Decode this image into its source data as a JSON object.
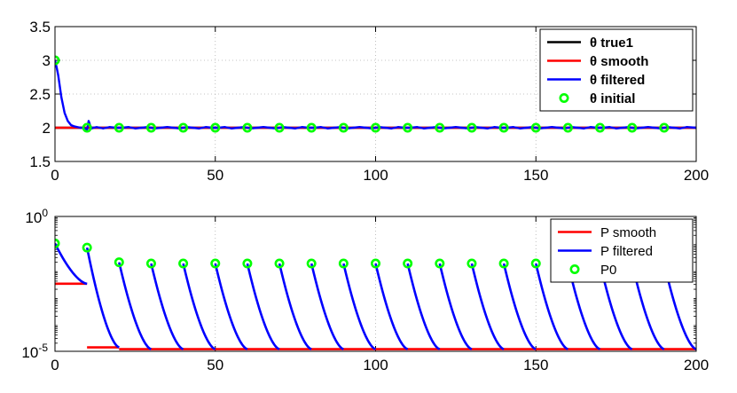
{
  "chart_data": [
    {
      "type": "line",
      "xlim": [
        0,
        200
      ],
      "ylim": [
        1.5,
        3.5
      ],
      "x_ticks": [
        "0",
        "50",
        "100",
        "150",
        "200"
      ],
      "y_ticks": [
        "1.5",
        "2",
        "2.5",
        "3",
        "3.5"
      ],
      "grid": true,
      "legend_position": "top-right",
      "series": [
        {
          "name": "θ true1",
          "color": "#000000",
          "x": [
            0,
            200
          ],
          "values": [
            2,
            2
          ]
        },
        {
          "name": "θ smooth",
          "color": "#ff0000",
          "x": [
            0,
            200
          ],
          "values": [
            2,
            2
          ]
        },
        {
          "name": "θ filtered",
          "color": "#0000ff",
          "x": [
            0,
            0.5,
            1,
            2,
            3,
            4,
            5,
            6,
            7,
            8,
            9,
            10,
            10.5,
            11,
            11.5,
            12,
            13,
            15,
            17,
            19,
            21,
            23,
            25,
            27,
            29,
            31,
            33,
            35,
            37,
            39,
            41,
            43,
            45,
            47,
            49,
            51,
            53,
            55,
            57,
            59,
            61,
            63,
            65,
            67,
            69,
            71,
            73,
            75,
            77,
            79,
            81,
            83,
            85,
            87,
            89,
            91,
            93,
            95,
            97,
            99,
            101,
            103,
            105,
            107,
            109,
            111,
            113,
            115,
            117,
            119,
            121,
            123,
            125,
            127,
            129,
            131,
            133,
            135,
            137,
            139,
            141,
            143,
            145,
            147,
            149,
            151,
            153,
            155,
            157,
            159,
            161,
            163,
            165,
            167,
            169,
            171,
            173,
            175,
            177,
            179,
            181,
            183,
            185,
            187,
            189,
            191,
            193,
            195,
            197,
            200
          ],
          "values": [
            3.0,
            2.9,
            2.78,
            2.45,
            2.22,
            2.1,
            2.04,
            2.02,
            2.01,
            2.0,
            2.0,
            1.97,
            2.1,
            2.03,
            1.99,
            2.0,
            2.01,
            1.99,
            2.01,
            2.0,
            2.0,
            2.01,
            1.99,
            2.0,
            2.01,
            1.99,
            2.0,
            2.01,
            2.0,
            1.99,
            2.01,
            2.0,
            1.99,
            2.01,
            2.0,
            2.0,
            2.01,
            1.99,
            2.0,
            2.01,
            1.99,
            2.0,
            2.01,
            2.0,
            1.99,
            2.01,
            2.0,
            1.99,
            2.01,
            2.0,
            2.0,
            2.01,
            1.99,
            2.0,
            2.01,
            1.99,
            2.0,
            2.01,
            2.0,
            1.99,
            2.01,
            2.0,
            1.99,
            2.01,
            2.0,
            2.0,
            2.01,
            1.99,
            2.0,
            2.01,
            1.99,
            2.0,
            2.01,
            2.0,
            1.99,
            2.01,
            2.0,
            1.99,
            2.01,
            2.0,
            2.0,
            2.01,
            1.99,
            2.0,
            2.01,
            1.99,
            2.0,
            2.01,
            2.0,
            1.99,
            2.01,
            2.0,
            1.99,
            2.01,
            2.0,
            2.0,
            2.01,
            1.99,
            2.0,
            2.01,
            1.99,
            2.0,
            2.01,
            2.0,
            1.99,
            2.01,
            2.0,
            1.99,
            2.01,
            2.0
          ]
        },
        {
          "name": "θ initial",
          "color": "#00ff00",
          "marker": "circle",
          "x": [
            0,
            10,
            20,
            30,
            40,
            50,
            60,
            70,
            80,
            90,
            100,
            110,
            120,
            130,
            140,
            150,
            160,
            170,
            180,
            190
          ],
          "values": [
            3,
            2,
            2,
            2,
            2,
            2,
            2,
            2,
            2,
            2,
            2,
            2,
            2,
            2,
            2,
            2,
            2,
            2,
            2,
            2
          ]
        }
      ]
    },
    {
      "type": "line",
      "xlim": [
        0,
        200
      ],
      "ylim": [
        1e-05,
        1
      ],
      "yscale": "log",
      "x_ticks": [
        "0",
        "50",
        "100",
        "150",
        "200"
      ],
      "y_ticks": [
        {
          "base": "10",
          "exp": "0"
        },
        {
          "base": "10",
          "exp": "-5"
        }
      ],
      "grid": true,
      "legend_position": "top-right",
      "series": [
        {
          "name": "P smooth",
          "color": "#ff0000",
          "segments": [
            {
              "x": [
                0,
                10
              ],
              "values": [
                0.0032,
                0.0032
              ]
            },
            {
              "x": [
                10,
                20
              ],
              "values": [
                1.4e-05,
                1.4e-05
              ]
            },
            {
              "x": [
                20,
                200
              ],
              "values": [
                1.2e-05,
                1.2e-05
              ]
            }
          ]
        },
        {
          "name": "P filtered",
          "color": "#0000ff",
          "segments": [
            {
              "x": [
                0,
                10
              ],
              "start": 0.1,
              "end": 0.0032
            },
            {
              "x": [
                10,
                20
              ],
              "start": 0.07,
              "end": 1.4e-05
            },
            {
              "x": [
                20,
                30
              ],
              "start": 0.02,
              "end": 1.2e-05
            },
            {
              "x": [
                30,
                40
              ],
              "start": 0.018,
              "end": 1.2e-05
            },
            {
              "x": [
                40,
                50
              ],
              "start": 0.018,
              "end": 1.2e-05
            },
            {
              "x": [
                50,
                60
              ],
              "start": 0.018,
              "end": 1.2e-05
            },
            {
              "x": [
                60,
                70
              ],
              "start": 0.018,
              "end": 1.2e-05
            },
            {
              "x": [
                70,
                80
              ],
              "start": 0.018,
              "end": 1.2e-05
            },
            {
              "x": [
                80,
                90
              ],
              "start": 0.018,
              "end": 1.2e-05
            },
            {
              "x": [
                90,
                100
              ],
              "start": 0.018,
              "end": 1.2e-05
            },
            {
              "x": [
                100,
                110
              ],
              "start": 0.018,
              "end": 1.2e-05
            },
            {
              "x": [
                110,
                120
              ],
              "start": 0.018,
              "end": 1.2e-05
            },
            {
              "x": [
                120,
                130
              ],
              "start": 0.018,
              "end": 1.2e-05
            },
            {
              "x": [
                130,
                140
              ],
              "start": 0.018,
              "end": 1.2e-05
            },
            {
              "x": [
                140,
                150
              ],
              "start": 0.018,
              "end": 1.2e-05
            },
            {
              "x": [
                150,
                160
              ],
              "start": 0.018,
              "end": 1.2e-05
            },
            {
              "x": [
                160,
                170
              ],
              "start": 0.018,
              "end": 1.2e-05
            },
            {
              "x": [
                170,
                180
              ],
              "start": 0.018,
              "end": 1.2e-05
            },
            {
              "x": [
                180,
                190
              ],
              "start": 0.018,
              "end": 1.2e-05
            },
            {
              "x": [
                190,
                200
              ],
              "start": 0.018,
              "end": 1.2e-05
            }
          ]
        },
        {
          "name": "P0",
          "color": "#00ff00",
          "marker": "circle",
          "x": [
            0,
            10,
            20,
            30,
            40,
            50,
            60,
            70,
            80,
            90,
            100,
            110,
            120,
            130,
            140,
            150,
            160,
            170,
            180,
            190
          ],
          "values": [
            0.1,
            0.07,
            0.02,
            0.018,
            0.018,
            0.018,
            0.018,
            0.018,
            0.018,
            0.018,
            0.018,
            0.018,
            0.018,
            0.018,
            0.018,
            0.018,
            0.018,
            0.018,
            0.018,
            0.018
          ]
        }
      ]
    }
  ]
}
